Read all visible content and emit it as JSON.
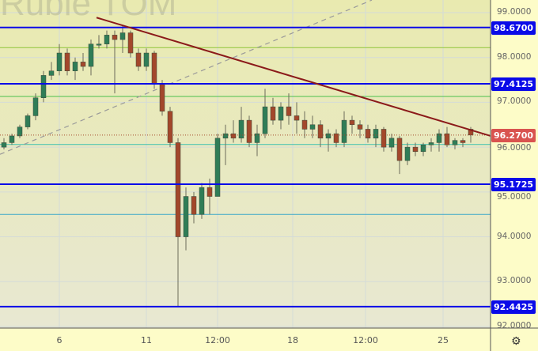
{
  "chart_data": {
    "type": "candlestick",
    "title": "Ruble TOM",
    "ylim": [
      92.0,
      99.2
    ],
    "y_ticks": [
      "99.0000",
      "98.0000",
      "97.0000",
      "96.0000",
      "95.0000",
      "94.0000",
      "93.0000",
      "92.0000"
    ],
    "x_ticks": [
      "6",
      "11",
      "12:00",
      "18",
      "12:00",
      "25"
    ],
    "grid": true,
    "colors": {
      "up": "#2f7d57",
      "down": "#a3472b",
      "level": "#0a0ae8",
      "trend": "#8b1a1a",
      "last": "#d9534f"
    },
    "levels": [
      {
        "label": "98.6700",
        "value": 98.67
      },
      {
        "label": "97.4125",
        "value": 97.4125
      },
      {
        "label": "95.1725",
        "value": 95.1725
      },
      {
        "label": "92.4425",
        "value": 92.4425
      }
    ],
    "minor_levels": [
      {
        "value": 98.22,
        "color": "#8fc43a"
      },
      {
        "value": 97.13,
        "color": "#4cc04c"
      },
      {
        "value": 96.06,
        "color": "#3cc0b0"
      },
      {
        "value": 94.5,
        "color": "#3aa8c8"
      }
    ],
    "last_price": {
      "label": "96.2700",
      "value": 96.27
    },
    "trendline": {
      "from": [
        11.7,
        98.89
      ],
      "to": [
        61.5,
        96.25
      ]
    },
    "dashed_line": {
      "from": [
        -0.5,
        95.84
      ],
      "to": [
        46.5,
        99.28
      ]
    },
    "ohlc": [
      [
        96.0,
        96.2,
        95.95,
        96.1
      ],
      [
        96.1,
        96.3,
        96.05,
        96.25
      ],
      [
        96.25,
        96.5,
        96.2,
        96.45
      ],
      [
        96.45,
        96.75,
        96.4,
        96.7
      ],
      [
        96.7,
        97.2,
        96.6,
        97.1
      ],
      [
        97.1,
        97.7,
        97.0,
        97.6
      ],
      [
        97.6,
        97.9,
        97.5,
        97.7
      ],
      [
        97.7,
        98.3,
        97.6,
        98.1
      ],
      [
        98.1,
        98.2,
        97.6,
        97.7
      ],
      [
        97.7,
        98.0,
        97.5,
        97.9
      ],
      [
        97.9,
        98.1,
        97.7,
        97.8
      ],
      [
        97.8,
        98.4,
        97.6,
        98.3
      ],
      [
        98.3,
        98.5,
        98.2,
        98.3
      ],
      [
        98.3,
        98.6,
        98.2,
        98.5
      ],
      [
        98.5,
        98.6,
        97.2,
        98.4
      ],
      [
        98.4,
        98.7,
        98.1,
        98.55
      ],
      [
        98.55,
        98.6,
        98.0,
        98.1
      ],
      [
        98.1,
        98.2,
        97.7,
        97.8
      ],
      [
        97.8,
        98.2,
        97.7,
        98.1
      ],
      [
        98.1,
        98.15,
        97.3,
        97.4
      ],
      [
        97.4,
        97.5,
        96.7,
        96.8
      ],
      [
        96.8,
        96.9,
        96.0,
        96.1
      ],
      [
        96.1,
        96.2,
        92.44,
        94.0
      ],
      [
        94.0,
        95.1,
        93.7,
        94.9
      ],
      [
        94.9,
        95.0,
        94.3,
        94.5
      ],
      [
        94.5,
        95.2,
        94.4,
        95.1
      ],
      [
        95.1,
        95.3,
        94.5,
        94.9
      ],
      [
        94.9,
        96.3,
        94.9,
        96.2
      ],
      [
        96.2,
        96.5,
        95.6,
        96.3
      ],
      [
        96.3,
        96.6,
        96.1,
        96.2
      ],
      [
        96.2,
        96.9,
        96.1,
        96.6
      ],
      [
        96.6,
        96.7,
        96.0,
        96.1
      ],
      [
        96.1,
        96.5,
        95.8,
        96.3
      ],
      [
        96.3,
        97.3,
        96.2,
        96.9
      ],
      [
        96.9,
        97.1,
        96.5,
        96.6
      ],
      [
        96.6,
        97.0,
        96.4,
        96.9
      ],
      [
        96.9,
        97.2,
        96.5,
        96.7
      ],
      [
        96.7,
        97.0,
        96.3,
        96.6
      ],
      [
        96.6,
        96.8,
        96.2,
        96.4
      ],
      [
        96.4,
        96.7,
        96.2,
        96.5
      ],
      [
        96.5,
        96.6,
        96.0,
        96.2
      ],
      [
        96.2,
        96.4,
        95.9,
        96.3
      ],
      [
        96.3,
        96.4,
        96.0,
        96.1
      ],
      [
        96.1,
        96.8,
        96.0,
        96.6
      ],
      [
        96.6,
        96.7,
        96.3,
        96.5
      ],
      [
        96.5,
        96.6,
        96.2,
        96.4
      ],
      [
        96.4,
        96.5,
        96.1,
        96.2
      ],
      [
        96.2,
        96.5,
        96.0,
        96.4
      ],
      [
        96.4,
        96.45,
        95.9,
        96.0
      ],
      [
        96.0,
        96.3,
        95.9,
        96.2
      ],
      [
        96.2,
        96.25,
        95.4,
        95.7
      ],
      [
        95.7,
        96.1,
        95.6,
        96.0
      ],
      [
        96.0,
        96.1,
        95.8,
        95.9
      ],
      [
        95.9,
        96.1,
        95.8,
        96.05
      ],
      [
        96.05,
        96.2,
        95.9,
        96.1
      ],
      [
        96.1,
        96.4,
        95.9,
        96.3
      ],
      [
        96.3,
        96.45,
        96.0,
        96.05
      ],
      [
        96.05,
        96.2,
        95.95,
        96.15
      ],
      [
        96.15,
        96.2,
        96.0,
        96.1
      ],
      [
        96.4,
        96.45,
        96.1,
        96.27
      ]
    ]
  },
  "toolbar": {
    "settings_icon": "gear-icon"
  }
}
